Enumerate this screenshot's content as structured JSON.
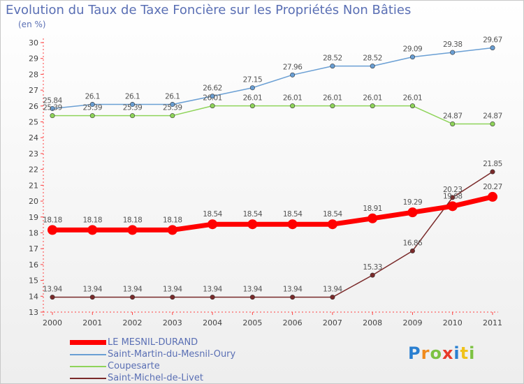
{
  "chart_data": {
    "type": "line",
    "title": "Evolution du Taux de Taxe Foncière sur les Propriétés Non Bâties",
    "subtitle": "(en %)",
    "categories": [
      "2000",
      "2001",
      "2002",
      "2003",
      "2004",
      "2005",
      "2006",
      "2007",
      "2008",
      "2009",
      "2010",
      "2011"
    ],
    "ylim": [
      13,
      30
    ],
    "yticks": [
      13,
      14,
      15,
      16,
      17,
      18,
      19,
      20,
      21,
      22,
      23,
      24,
      25,
      26,
      27,
      28,
      29,
      30
    ],
    "series": [
      {
        "name": "LE MESNIL-DURAND",
        "color": "#ff0000",
        "values": [
          18.18,
          18.18,
          18.18,
          18.18,
          18.54,
          18.54,
          18.54,
          18.54,
          18.91,
          19.29,
          19.68,
          20.27
        ],
        "labels": [
          "18.18",
          "18.18",
          "18.18",
          "18.18",
          "18.54",
          "18.54",
          "18.54",
          "18.54",
          "18.91",
          "19.29",
          "19.68",
          "20.27"
        ]
      },
      {
        "name": "Saint-Martin-du-Mesnil-Oury",
        "color": "#6a9fd4",
        "values": [
          25.84,
          26.1,
          26.1,
          26.1,
          26.62,
          27.15,
          27.96,
          28.52,
          28.52,
          29.09,
          29.38,
          29.67
        ],
        "labels": [
          "25.84",
          "26.1",
          "26.1",
          "26.1",
          "26.62",
          "27.15",
          "27.96",
          "28.52",
          "28.52",
          "29.09",
          "29.38",
          "29.67"
        ]
      },
      {
        "name": "Coupesarte",
        "color": "#8fd45a",
        "values": [
          25.39,
          25.39,
          25.39,
          25.39,
          26.01,
          26.01,
          26.01,
          26.01,
          26.01,
          26.01,
          24.87,
          24.87
        ],
        "labels": [
          "25.39",
          "25.39",
          "25.39",
          "25.39",
          "26.01",
          "26.01",
          "26.01",
          "26.01",
          "26.01",
          "26.01",
          "24.87",
          "24.87"
        ]
      },
      {
        "name": "Saint-Michel-de-Livet",
        "color": "#7a2a2a",
        "values": [
          13.94,
          13.94,
          13.94,
          13.94,
          13.94,
          13.94,
          13.94,
          13.94,
          15.33,
          16.86,
          20.23,
          21.85
        ],
        "labels": [
          "13.94",
          "13.94",
          "13.94",
          "13.94",
          "13.94",
          "13.94",
          "13.94",
          "13.94",
          "15.33",
          "16.86",
          "20.23",
          "21.85"
        ]
      }
    ],
    "legend_position": "bottom-left",
    "grid": false
  },
  "brand": {
    "letters": [
      "P",
      "r",
      "o",
      "x",
      "i",
      "t",
      "i"
    ],
    "colors": [
      "#2a7fd0",
      "#f08a1c",
      "#7cc242",
      "#e83a2a",
      "#2a7fd0",
      "#f0c21c",
      "#7cc242"
    ]
  }
}
